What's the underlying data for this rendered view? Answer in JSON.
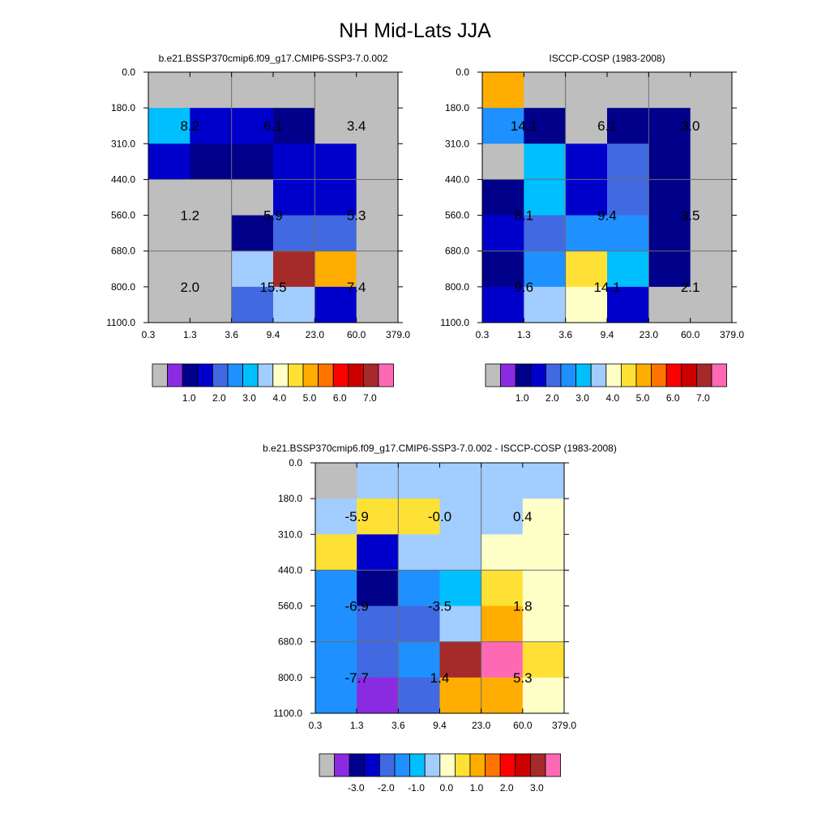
{
  "title": "NH Mid-Lats JJA",
  "colors": {
    "missing": "#bebebe",
    "cell_border": "#6e6e6e",
    "axis": "#000000"
  },
  "chart_data": [
    {
      "type": "heatmap",
      "title": "b.e21.BSSP370cmip6.f09_g17.CMIP6-SSP3-7.0.002",
      "x_ticks": [
        "0.3",
        "1.3",
        "3.6",
        "9.4",
        "23.0",
        "60.0",
        "379.0"
      ],
      "y_ticks": [
        "0.0",
        "180.0",
        "310.0",
        "440.0",
        "560.0",
        "680.0",
        "800.0",
        "1100.0"
      ],
      "cells": [
        [
          0,
          null,
          null,
          null,
          null,
          null
        ],
        [
          6,
          3,
          3,
          2,
          0,
          null
        ],
        [
          3,
          2,
          2,
          3,
          3,
          0
        ],
        [
          null,
          null,
          0,
          3,
          3,
          null
        ],
        [
          null,
          null,
          2,
          4,
          4,
          0
        ],
        [
          null,
          0,
          7,
          14,
          10,
          0
        ],
        [
          null,
          0,
          4,
          7,
          3,
          null
        ]
      ],
      "box_labels": [
        [
          "8.2",
          "6.1",
          "3.4"
        ],
        [
          "1.2",
          "5.9",
          "5.3"
        ],
        [
          "2.0",
          "15.5",
          "7.4"
        ]
      ],
      "colorbar": {
        "colors": [
          "#bebebe",
          "#8a2be2",
          "#00008b",
          "#0000cd",
          "#4169e1",
          "#1e90ff",
          "#00bfff",
          "#a2cdff",
          "#ffffc8",
          "#ffe135",
          "#ffad00",
          "#ff7400",
          "#ff0000",
          "#cd0000",
          "#a52a2a",
          "#ff69b4"
        ],
        "labels": [
          "1.0",
          "2.0",
          "3.0",
          "4.0",
          "5.0",
          "6.0",
          "7.0"
        ]
      }
    },
    {
      "type": "heatmap",
      "title": "ISCCP-COSP (1983-2008)",
      "x_ticks": [
        "0.3",
        "1.3",
        "3.6",
        "9.4",
        "23.0",
        "60.0",
        "379.0"
      ],
      "y_ticks": [
        "0.0",
        "180.0",
        "310.0",
        "440.0",
        "560.0",
        "680.0",
        "800.0",
        "1100.0"
      ],
      "cells": [
        [
          10,
          null,
          null,
          null,
          null,
          null
        ],
        [
          5,
          2,
          0,
          2,
          2,
          null
        ],
        [
          0,
          6,
          3,
          4,
          2,
          null
        ],
        [
          2,
          6,
          3,
          4,
          2,
          null
        ],
        [
          3,
          4,
          5,
          5,
          2,
          0
        ],
        [
          2,
          5,
          9,
          6,
          2,
          null
        ],
        [
          3,
          7,
          8,
          3,
          null,
          null
        ]
      ],
      "box_labels": [
        [
          "14.1",
          "6.1",
          "3.0"
        ],
        [
          "8.1",
          "9.4",
          "3.5"
        ],
        [
          "9.6",
          "14.1",
          "2.1"
        ]
      ],
      "colorbar": {
        "colors": [
          "#bebebe",
          "#8a2be2",
          "#00008b",
          "#0000cd",
          "#4169e1",
          "#1e90ff",
          "#00bfff",
          "#a2cdff",
          "#ffffc8",
          "#ffe135",
          "#ffad00",
          "#ff7400",
          "#ff0000",
          "#cd0000",
          "#a52a2a",
          "#ff69b4"
        ],
        "labels": [
          "1.0",
          "2.0",
          "3.0",
          "4.0",
          "5.0",
          "6.0",
          "7.0"
        ]
      }
    },
    {
      "type": "heatmap",
      "title": "b.e21.BSSP370cmip6.f09_g17.CMIP6-SSP3-7.0.002 - ISCCP-COSP (1983-2008)",
      "x_ticks": [
        "0.3",
        "1.3",
        "3.6",
        "9.4",
        "23.0",
        "60.0",
        "379.0"
      ],
      "y_ticks": [
        "0.0",
        "180.0",
        "310.0",
        "440.0",
        "560.0",
        "680.0",
        "800.0",
        "1100.0"
      ],
      "cells": [
        [
          null,
          7,
          7,
          7,
          7,
          7
        ],
        [
          7,
          9,
          9,
          7,
          7,
          8
        ],
        [
          9,
          3,
          7,
          7,
          8,
          8
        ],
        [
          5,
          2,
          5,
          6,
          9,
          8
        ],
        [
          5,
          4,
          4,
          7,
          10,
          8
        ],
        [
          5,
          4,
          5,
          14,
          15,
          9
        ],
        [
          5,
          1,
          4,
          10,
          10,
          8
        ]
      ],
      "box_labels": [
        [
          "-5.9",
          "-0.0",
          "0.4"
        ],
        [
          "-6.9",
          "-3.5",
          "1.8"
        ],
        [
          "-7.7",
          "1.4",
          "5.3"
        ]
      ],
      "colorbar": {
        "colors": [
          "#bebebe",
          "#8a2be2",
          "#00008b",
          "#0000cd",
          "#4169e1",
          "#1e90ff",
          "#00bfff",
          "#a2cdff",
          "#ffffc8",
          "#ffe135",
          "#ffad00",
          "#ff7400",
          "#ff0000",
          "#cd0000",
          "#a52a2a",
          "#ff69b4"
        ],
        "labels": [
          "-3.0",
          "-2.0",
          "-1.0",
          "0.0",
          "1.0",
          "2.0",
          "3.0"
        ]
      }
    }
  ]
}
